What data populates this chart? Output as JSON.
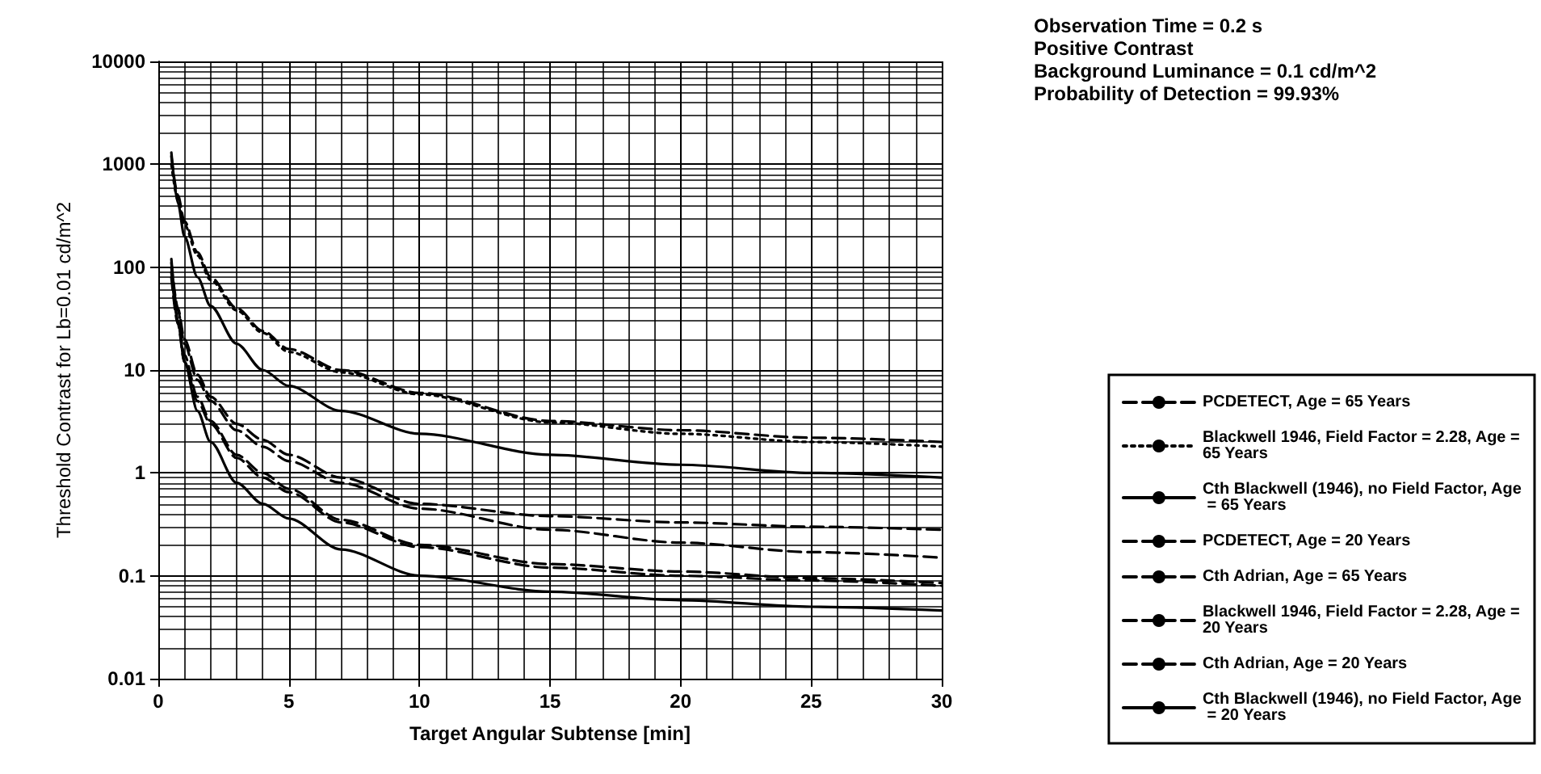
{
  "chart_data": {
    "type": "line",
    "xlabel": "Target Angular Subtense [min]",
    "ylabel": "Threshold Contrast for Lb=0.01 cd/m^2",
    "annotations": [
      "Observation Time = 0.2 s",
      "Positive Contrast",
      "Background Luminance = 0.1 cd/m^2",
      "Probability of Detection = 99.93%"
    ],
    "xlim": [
      0,
      30
    ],
    "xticks": [
      0,
      5,
      10,
      15,
      20,
      25,
      30
    ],
    "ylim": [
      0.01,
      10000
    ],
    "yticks": [
      0.01,
      0.1,
      1,
      10,
      100,
      1000,
      10000
    ],
    "log": "y",
    "grid": true,
    "legend": "right",
    "marker": "none",
    "x": [
      0.5,
      0.75,
      1,
      1.5,
      2,
      3,
      4,
      5,
      7,
      10,
      15,
      20,
      25,
      30
    ],
    "series": [
      {
        "name": "PCDETECT, Age = 65 Years",
        "color": "#000000",
        "line_style": "dashed",
        "values": [
          1200,
          500,
          280,
          140,
          80,
          40,
          24,
          16,
          10,
          6,
          3.2,
          2.6,
          2.2,
          2.0
        ]
      },
      {
        "name": "Blackwell 1946, Field Factor = 2.28, Age = 65 Years",
        "color": "#000000",
        "line_style": "dotted",
        "values": [
          1000,
          450,
          260,
          130,
          75,
          38,
          23,
          15,
          9.5,
          5.8,
          3.1,
          2.4,
          2.0,
          1.8
        ]
      },
      {
        "name": "Cth Blackwell (1946), no Field Factor, Age = 65 Years",
        "color": "#000000",
        "line_style": "solid",
        "values": [
          1300,
          420,
          200,
          80,
          42,
          18,
          10,
          7,
          4,
          2.4,
          1.5,
          1.2,
          1.0,
          0.9
        ]
      },
      {
        "name": "PCDETECT, Age = 20 Years",
        "color": "#000000",
        "line_style": "dashed",
        "values": [
          110,
          40,
          20,
          9,
          5.5,
          3,
          2.1,
          1.5,
          0.9,
          0.5,
          0.38,
          0.33,
          0.3,
          0.28
        ]
      },
      {
        "name": "Cth Adrian, Age = 65 Years",
        "color": "#000000",
        "line_style": "dashed",
        "values": [
          100,
          38,
          18,
          8,
          5,
          2.6,
          1.8,
          1.3,
          0.8,
          0.45,
          0.28,
          0.21,
          0.17,
          0.15
        ]
      },
      {
        "name": "Blackwell 1946, Field Factor = 2.28, Age = 20 Years",
        "color": "#000000",
        "line_style": "dashed",
        "values": [
          90,
          30,
          14,
          5.5,
          3.2,
          1.5,
          1,
          0.7,
          0.35,
          0.2,
          0.13,
          0.11,
          0.095,
          0.085
        ]
      },
      {
        "name": "Cth Adrian, Age = 20 Years",
        "color": "#000000",
        "line_style": "dashed",
        "values": [
          80,
          28,
          12,
          5,
          3,
          1.4,
          0.9,
          0.65,
          0.33,
          0.19,
          0.12,
          0.1,
          0.09,
          0.08
        ]
      },
      {
        "name": "Cth Blackwell (1946), no Field Factor, Age = 20 Years",
        "color": "#000000",
        "line_style": "solid",
        "values": [
          120,
          30,
          12,
          4,
          2,
          0.8,
          0.5,
          0.36,
          0.18,
          0.1,
          0.07,
          0.058,
          0.05,
          0.046
        ]
      }
    ]
  }
}
